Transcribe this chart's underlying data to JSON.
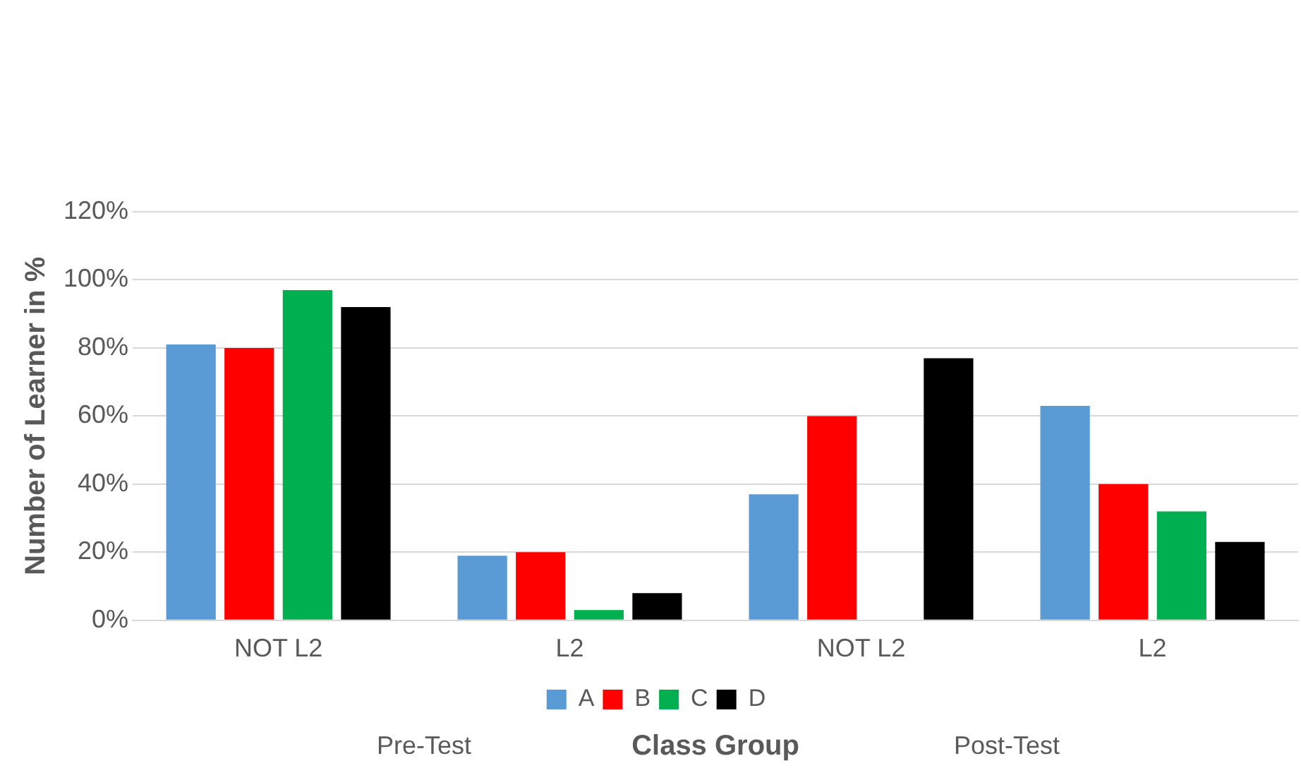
{
  "chart_data": {
    "type": "bar",
    "xlabel": "Class Group",
    "ylabel": "Number of Learner in %",
    "categories": [
      "NOT L2",
      "L2",
      "NOT L2",
      "L2"
    ],
    "series": [
      {
        "name": "A",
        "color": "#5b9bd5",
        "values": [
          81,
          19,
          37,
          63
        ]
      },
      {
        "name": "B",
        "color": "#ff0000",
        "values": [
          80,
          20,
          60,
          40
        ]
      },
      {
        "name": "C",
        "color": "#00b050",
        "values": [
          97,
          3,
          0,
          32
        ]
      },
      {
        "name": "D",
        "color": "#000000",
        "values": [
          92,
          8,
          77,
          23
        ]
      }
    ],
    "ylim": [
      0,
      120
    ],
    "yticks": [
      {
        "value": 0,
        "label": "0%"
      },
      {
        "value": 20,
        "label": "20%"
      },
      {
        "value": 40,
        "label": "40%"
      },
      {
        "value": 60,
        "label": "60%"
      },
      {
        "value": 80,
        "label": "80%"
      },
      {
        "value": 100,
        "label": "100%"
      },
      {
        "value": 120,
        "label": "120%"
      }
    ],
    "grid": "y",
    "legend": "bottom",
    "annotations": [
      "Pre-Test",
      "Post-Test"
    ]
  }
}
